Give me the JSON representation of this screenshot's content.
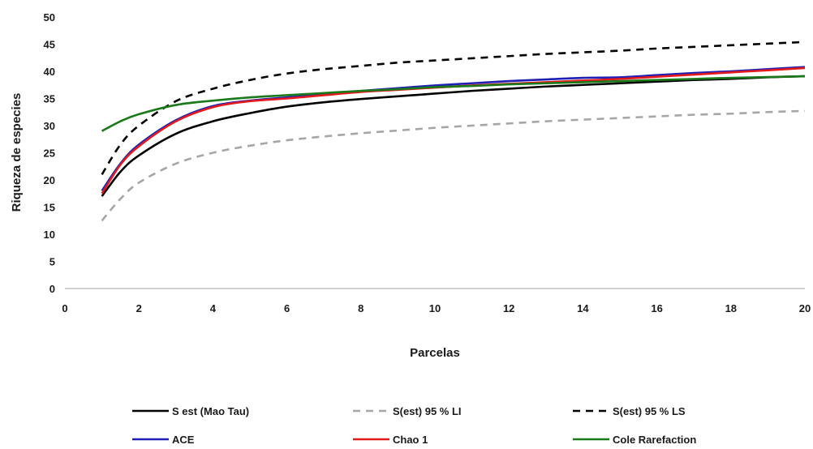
{
  "chart_data": {
    "type": "line",
    "title": "",
    "xlabel": "Parcelas",
    "ylabel": "Riqueza de especies",
    "xlim": [
      0,
      20
    ],
    "ylim": [
      0,
      50
    ],
    "xticks": [
      0,
      2,
      4,
      6,
      8,
      10,
      12,
      14,
      16,
      18,
      20
    ],
    "yticks": [
      0,
      5,
      10,
      15,
      20,
      25,
      30,
      35,
      40,
      45,
      50
    ],
    "grid": false,
    "legend_position": "bottom",
    "x": [
      1,
      1.5,
      2,
      3,
      4,
      5,
      6,
      7,
      8,
      9,
      10,
      11,
      12,
      13,
      14,
      15,
      16,
      17,
      18,
      19,
      20
    ],
    "series": [
      {
        "name": "S est (Mao Tau)",
        "color": "#000000",
        "dash": "solid",
        "values": [
          17.0,
          21.5,
          24.5,
          28.5,
          30.8,
          32.3,
          33.5,
          34.3,
          34.9,
          35.4,
          35.9,
          36.4,
          36.8,
          37.2,
          37.5,
          37.8,
          38.1,
          38.4,
          38.6,
          38.9,
          39.1
        ]
      },
      {
        "name": "S(est) 95 % LI",
        "color": "#a6a6a6",
        "dash": "dashed",
        "values": [
          12.5,
          16.5,
          19.5,
          23.0,
          25.0,
          26.3,
          27.3,
          28.0,
          28.6,
          29.1,
          29.6,
          30.0,
          30.4,
          30.8,
          31.1,
          31.4,
          31.7,
          32.0,
          32.2,
          32.5,
          32.7
        ]
      },
      {
        "name": "S(est) 95 % LS",
        "color": "#000000",
        "dash": "dashed",
        "values": [
          21.0,
          26.5,
          30.0,
          34.5,
          36.8,
          38.4,
          39.6,
          40.4,
          41.0,
          41.6,
          42.0,
          42.4,
          42.8,
          43.2,
          43.5,
          43.8,
          44.2,
          44.5,
          44.8,
          45.1,
          45.4
        ]
      },
      {
        "name": "ACE",
        "color": "#1f1fb4",
        "dash": "solid",
        "values": [
          18.0,
          23.0,
          26.5,
          31.0,
          33.6,
          34.6,
          35.2,
          35.8,
          36.4,
          36.9,
          37.4,
          37.8,
          38.2,
          38.5,
          38.8,
          38.9,
          39.3,
          39.7,
          40.0,
          40.4,
          40.8
        ]
      },
      {
        "name": "Chao 1",
        "color": "#e31a1c",
        "dash": "solid",
        "values": [
          17.5,
          22.8,
          26.2,
          30.8,
          33.4,
          34.5,
          35.0,
          35.6,
          36.2,
          36.6,
          37.0,
          37.4,
          37.7,
          38.0,
          38.3,
          38.6,
          39.0,
          39.4,
          39.8,
          40.2,
          40.6
        ]
      },
      {
        "name": "Cole Rarefaction",
        "color": "#1a7a1a",
        "dash": "solid",
        "values": [
          29.0,
          30.8,
          32.1,
          33.8,
          34.6,
          35.2,
          35.6,
          36.0,
          36.4,
          36.7,
          37.1,
          37.3,
          37.6,
          37.8,
          38.0,
          38.2,
          38.4,
          38.6,
          38.8,
          38.95,
          39.1
        ]
      }
    ]
  }
}
